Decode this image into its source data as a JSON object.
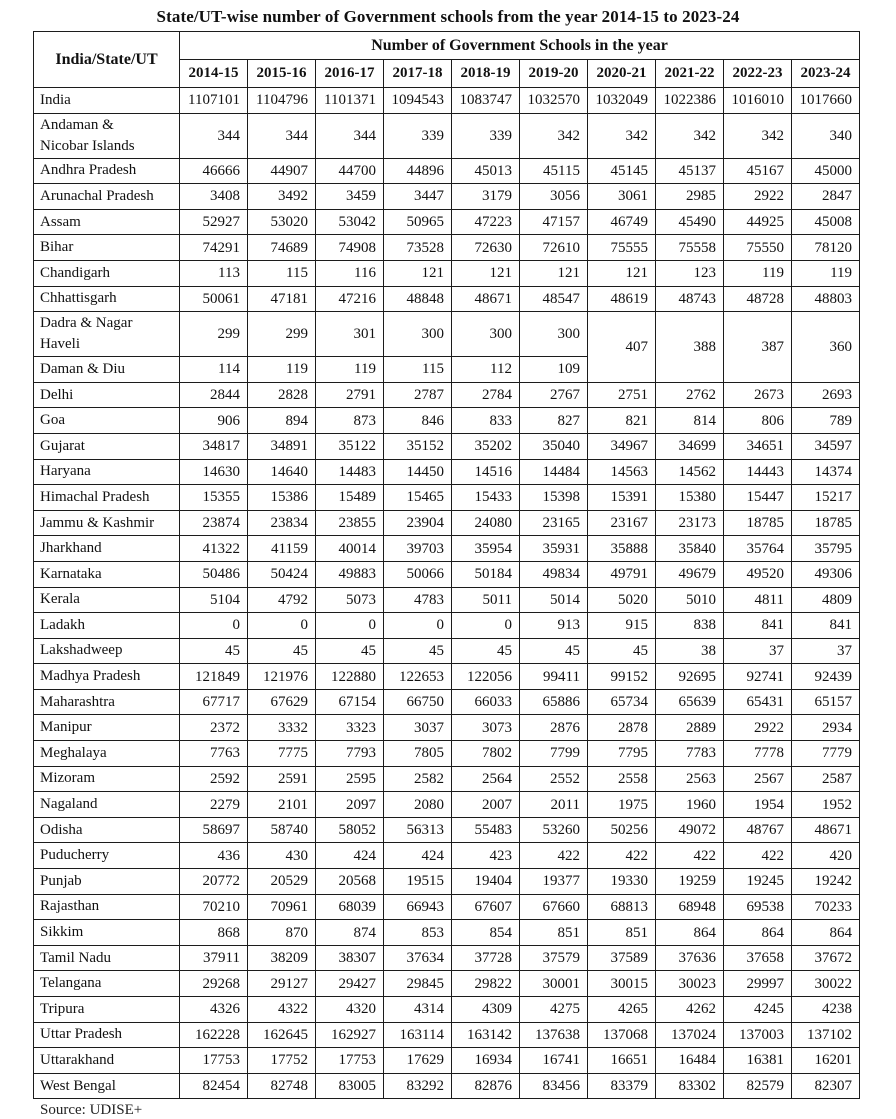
{
  "title": "State/UT-wise number of Government schools from the year 2014-15 to 2023-24",
  "table": {
    "corner_header": "India/State/UT",
    "group_header": "Number of Government Schools in the year",
    "years": [
      "2014-15",
      "2015-16",
      "2016-17",
      "2017-18",
      "2018-19",
      "2019-20",
      "2020-21",
      "2021-22",
      "2022-23",
      "2023-24"
    ],
    "rows": [
      {
        "name": "India",
        "values": [
          1107101,
          1104796,
          1101371,
          1094543,
          1083747,
          1032570,
          1032049,
          1022386,
          1016010,
          1017660
        ]
      },
      {
        "name": "Andaman &\nNicobar Islands",
        "values": [
          344,
          344,
          344,
          339,
          339,
          342,
          342,
          342,
          342,
          340
        ]
      },
      {
        "name": "Andhra Pradesh",
        "values": [
          46666,
          44907,
          44700,
          44896,
          45013,
          45115,
          45145,
          45137,
          45167,
          45000
        ]
      },
      {
        "name": "Arunachal Pradesh",
        "values": [
          3408,
          3492,
          3459,
          3447,
          3179,
          3056,
          3061,
          2985,
          2922,
          2847
        ]
      },
      {
        "name": "Assam",
        "values": [
          52927,
          53020,
          53042,
          50965,
          47223,
          47157,
          46749,
          45490,
          44925,
          45008
        ]
      },
      {
        "name": "Bihar",
        "values": [
          74291,
          74689,
          74908,
          73528,
          72630,
          72610,
          75555,
          75558,
          75550,
          78120
        ]
      },
      {
        "name": "Chandigarh",
        "values": [
          113,
          115,
          116,
          121,
          121,
          121,
          121,
          123,
          119,
          119
        ]
      },
      {
        "name": "Chhattisgarh",
        "values": [
          50061,
          47181,
          47216,
          48848,
          48671,
          48547,
          48619,
          48743,
          48728,
          48803
        ]
      },
      {
        "name": "Dadra & Nagar\nHaveli",
        "values": [
          299,
          299,
          301,
          300,
          300,
          300
        ],
        "merged_values": [
          407,
          388,
          387,
          360
        ]
      },
      {
        "name": "Daman & Diu",
        "values": [
          114,
          119,
          119,
          115,
          112,
          109
        ]
      },
      {
        "name": "Delhi",
        "values": [
          2844,
          2828,
          2791,
          2787,
          2784,
          2767,
          2751,
          2762,
          2673,
          2693
        ]
      },
      {
        "name": "Goa",
        "values": [
          906,
          894,
          873,
          846,
          833,
          827,
          821,
          814,
          806,
          789
        ]
      },
      {
        "name": "Gujarat",
        "values": [
          34817,
          34891,
          35122,
          35152,
          35202,
          35040,
          34967,
          34699,
          34651,
          34597
        ]
      },
      {
        "name": "Haryana",
        "values": [
          14630,
          14640,
          14483,
          14450,
          14516,
          14484,
          14563,
          14562,
          14443,
          14374
        ]
      },
      {
        "name": "Himachal Pradesh",
        "values": [
          15355,
          15386,
          15489,
          15465,
          15433,
          15398,
          15391,
          15380,
          15447,
          15217
        ]
      },
      {
        "name": "Jammu & Kashmir",
        "values": [
          23874,
          23834,
          23855,
          23904,
          24080,
          23165,
          23167,
          23173,
          18785,
          18785
        ]
      },
      {
        "name": "Jharkhand",
        "values": [
          41322,
          41159,
          40014,
          39703,
          35954,
          35931,
          35888,
          35840,
          35764,
          35795
        ]
      },
      {
        "name": "Karnataka",
        "values": [
          50486,
          50424,
          49883,
          50066,
          50184,
          49834,
          49791,
          49679,
          49520,
          49306
        ]
      },
      {
        "name": "Kerala",
        "values": [
          5104,
          4792,
          5073,
          4783,
          5011,
          5014,
          5020,
          5010,
          4811,
          4809
        ]
      },
      {
        "name": "Ladakh",
        "values": [
          0,
          0,
          0,
          0,
          0,
          913,
          915,
          838,
          841,
          841
        ]
      },
      {
        "name": "Lakshadweep",
        "values": [
          45,
          45,
          45,
          45,
          45,
          45,
          45,
          38,
          37,
          37
        ]
      },
      {
        "name": "Madhya Pradesh",
        "values": [
          121849,
          121976,
          122880,
          122653,
          122056,
          99411,
          99152,
          92695,
          92741,
          92439
        ]
      },
      {
        "name": "Maharashtra",
        "values": [
          67717,
          67629,
          67154,
          66750,
          66033,
          65886,
          65734,
          65639,
          65431,
          65157
        ]
      },
      {
        "name": "Manipur",
        "values": [
          2372,
          3332,
          3323,
          3037,
          3073,
          2876,
          2878,
          2889,
          2922,
          2934
        ]
      },
      {
        "name": "Meghalaya",
        "values": [
          7763,
          7775,
          7793,
          7805,
          7802,
          7799,
          7795,
          7783,
          7778,
          7779
        ]
      },
      {
        "name": "Mizoram",
        "values": [
          2592,
          2591,
          2595,
          2582,
          2564,
          2552,
          2558,
          2563,
          2567,
          2587
        ]
      },
      {
        "name": "Nagaland",
        "values": [
          2279,
          2101,
          2097,
          2080,
          2007,
          2011,
          1975,
          1960,
          1954,
          1952
        ]
      },
      {
        "name": "Odisha",
        "values": [
          58697,
          58740,
          58052,
          56313,
          55483,
          53260,
          50256,
          49072,
          48767,
          48671
        ]
      },
      {
        "name": "Puducherry",
        "values": [
          436,
          430,
          424,
          424,
          423,
          422,
          422,
          422,
          422,
          420
        ]
      },
      {
        "name": "Punjab",
        "values": [
          20772,
          20529,
          20568,
          19515,
          19404,
          19377,
          19330,
          19259,
          19245,
          19242
        ]
      },
      {
        "name": "Rajasthan",
        "values": [
          70210,
          70961,
          68039,
          66943,
          67607,
          67660,
          68813,
          68948,
          69538,
          70233
        ]
      },
      {
        "name": "Sikkim",
        "values": [
          868,
          870,
          874,
          853,
          854,
          851,
          851,
          864,
          864,
          864
        ]
      },
      {
        "name": "Tamil Nadu",
        "values": [
          37911,
          38209,
          38307,
          37634,
          37728,
          37579,
          37589,
          37636,
          37658,
          37672
        ]
      },
      {
        "name": "Telangana",
        "values": [
          29268,
          29127,
          29427,
          29845,
          29822,
          30001,
          30015,
          30023,
          29997,
          30022
        ]
      },
      {
        "name": "Tripura",
        "values": [
          4326,
          4322,
          4320,
          4314,
          4309,
          4275,
          4265,
          4262,
          4245,
          4238
        ]
      },
      {
        "name": "Uttar Pradesh",
        "values": [
          162228,
          162645,
          162927,
          163114,
          163142,
          137638,
          137068,
          137024,
          137003,
          137102
        ]
      },
      {
        "name": "Uttarakhand",
        "values": [
          17753,
          17752,
          17753,
          17629,
          16934,
          16741,
          16651,
          16484,
          16381,
          16201
        ]
      },
      {
        "name": "West Bengal",
        "values": [
          82454,
          82748,
          83005,
          83292,
          82876,
          83456,
          83379,
          83302,
          82579,
          82307
        ]
      }
    ]
  },
  "footer": {
    "source_label": "Source: UDISE+"
  }
}
